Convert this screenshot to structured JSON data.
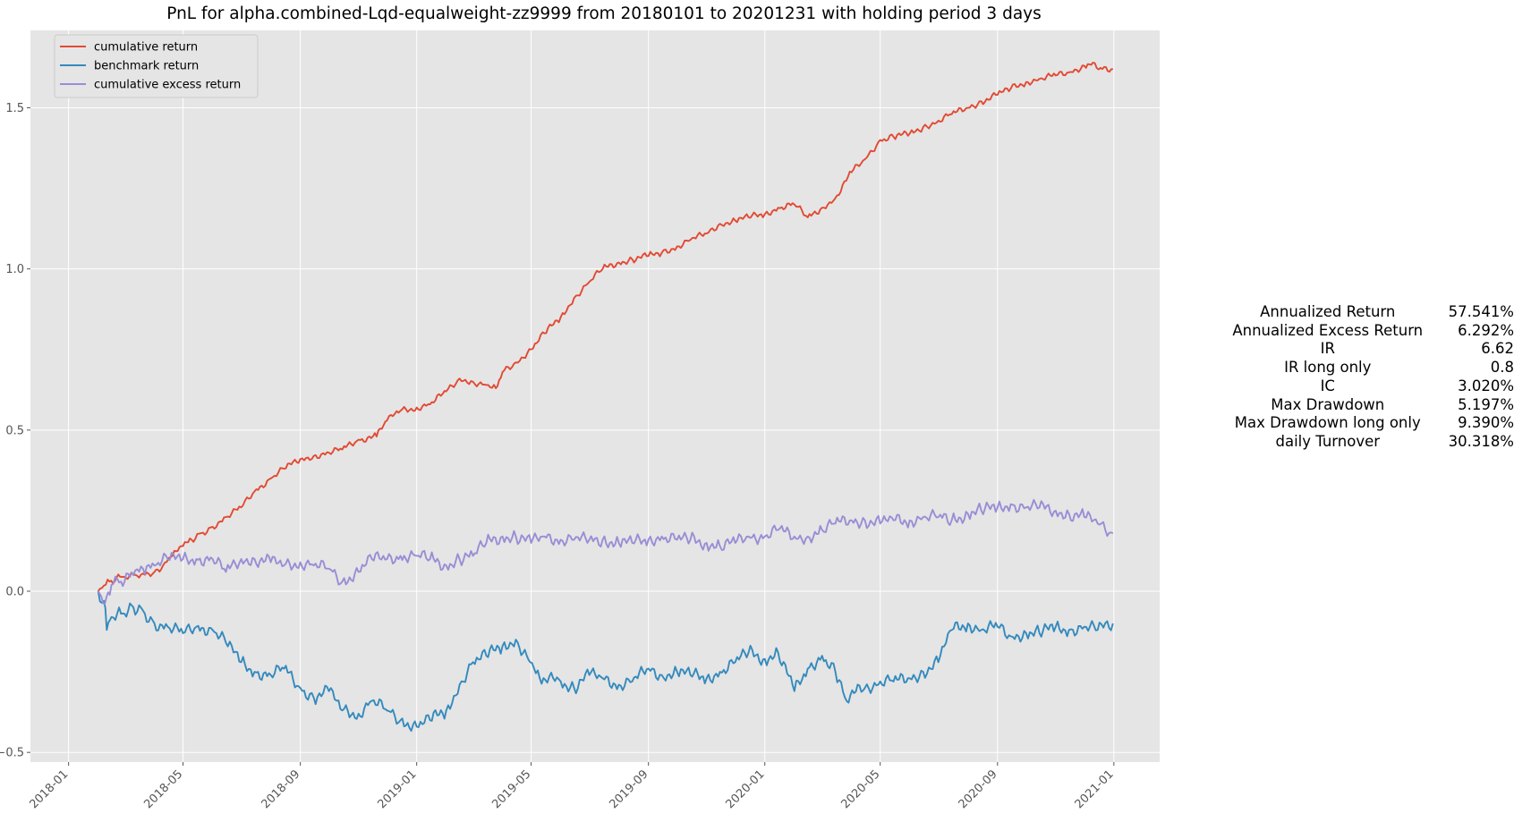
{
  "chart_data": {
    "type": "line",
    "title": "PnL for alpha.combined-Lqd-equalweight-zz9999 from 20180101 to 20201231 with holding period 3 days",
    "xlabel": "",
    "ylabel": "",
    "x_ticks": [
      "2018-01",
      "2018-05",
      "2018-09",
      "2019-01",
      "2019-05",
      "2019-09",
      "2020-01",
      "2020-05",
      "2020-09",
      "2021-01"
    ],
    "y_ticks": [
      "−0.5",
      "0.0",
      "0.5",
      "1.0",
      "1.5"
    ],
    "ylim": [
      -0.53,
      1.74
    ],
    "xlim": [
      "2017-11-22",
      "2021-02-18"
    ],
    "grid": true,
    "legend_position": "top-left",
    "series": [
      {
        "name": "cumulative return",
        "color": "#e24a33",
        "points": [
          [
            "2018-02-01",
            0.0
          ],
          [
            "2018-02-05",
            0.01
          ],
          [
            "2018-02-09",
            0.02
          ],
          [
            "2018-02-13",
            0.03
          ],
          [
            "2018-02-20",
            0.04
          ],
          [
            "2018-02-28",
            0.045
          ],
          [
            "2018-03-10",
            0.05
          ],
          [
            "2018-03-20",
            0.055
          ],
          [
            "2018-04-01",
            0.06
          ],
          [
            "2018-04-10",
            0.08
          ],
          [
            "2018-04-20",
            0.11
          ],
          [
            "2018-05-01",
            0.14
          ],
          [
            "2018-05-10",
            0.16
          ],
          [
            "2018-05-20",
            0.18
          ],
          [
            "2018-06-01",
            0.2
          ],
          [
            "2018-06-15",
            0.23
          ],
          [
            "2018-07-01",
            0.26
          ],
          [
            "2018-07-15",
            0.31
          ],
          [
            "2018-08-01",
            0.35
          ],
          [
            "2018-08-15",
            0.38
          ],
          [
            "2018-09-01",
            0.41
          ],
          [
            "2018-09-15",
            0.42
          ],
          [
            "2018-10-01",
            0.43
          ],
          [
            "2018-10-15",
            0.44
          ],
          [
            "2018-11-01",
            0.47
          ],
          [
            "2018-11-20",
            0.48
          ],
          [
            "2018-12-01",
            0.53
          ],
          [
            "2018-12-15",
            0.56
          ],
          [
            "2019-01-01",
            0.57
          ],
          [
            "2019-01-15",
            0.58
          ],
          [
            "2019-02-01",
            0.62
          ],
          [
            "2019-02-15",
            0.66
          ],
          [
            "2019-03-01",
            0.65
          ],
          [
            "2019-03-15",
            0.64
          ],
          [
            "2019-03-25",
            0.63
          ],
          [
            "2019-04-01",
            0.68
          ],
          [
            "2019-04-15",
            0.71
          ],
          [
            "2019-05-01",
            0.75
          ],
          [
            "2019-05-15",
            0.8
          ],
          [
            "2019-06-01",
            0.85
          ],
          [
            "2019-06-15",
            0.91
          ],
          [
            "2019-07-01",
            0.96
          ],
          [
            "2019-07-15",
            1.0
          ],
          [
            "2019-08-01",
            1.02
          ],
          [
            "2019-08-15",
            1.03
          ],
          [
            "2019-09-01",
            1.04
          ],
          [
            "2019-09-15",
            1.05
          ],
          [
            "2019-10-01",
            1.07
          ],
          [
            "2019-10-15",
            1.09
          ],
          [
            "2019-11-01",
            1.11
          ],
          [
            "2019-11-15",
            1.14
          ],
          [
            "2019-12-01",
            1.15
          ],
          [
            "2019-12-15",
            1.16
          ],
          [
            "2020-01-01",
            1.17
          ],
          [
            "2020-01-15",
            1.19
          ],
          [
            "2020-02-01",
            1.2
          ],
          [
            "2020-02-15",
            1.16
          ],
          [
            "2020-03-01",
            1.19
          ],
          [
            "2020-03-15",
            1.22
          ],
          [
            "2020-04-01",
            1.3
          ],
          [
            "2020-04-15",
            1.34
          ],
          [
            "2020-05-01",
            1.4
          ],
          [
            "2020-05-15",
            1.41
          ],
          [
            "2020-06-01",
            1.42
          ],
          [
            "2020-06-15",
            1.44
          ],
          [
            "2020-07-01",
            1.46
          ],
          [
            "2020-07-15",
            1.48
          ],
          [
            "2020-08-01",
            1.5
          ],
          [
            "2020-08-15",
            1.52
          ],
          [
            "2020-09-01",
            1.54
          ],
          [
            "2020-09-15",
            1.56
          ],
          [
            "2020-10-01",
            1.58
          ],
          [
            "2020-10-15",
            1.59
          ],
          [
            "2020-11-01",
            1.6
          ],
          [
            "2020-11-15",
            1.61
          ],
          [
            "2020-12-01",
            1.63
          ],
          [
            "2020-12-10",
            1.64
          ],
          [
            "2020-12-20",
            1.62
          ],
          [
            "2020-12-31",
            1.62
          ]
        ]
      },
      {
        "name": "benchmark return",
        "color": "#348abd",
        "points": [
          [
            "2018-02-01",
            0.0
          ],
          [
            "2018-02-07",
            -0.03
          ],
          [
            "2018-02-10",
            -0.12
          ],
          [
            "2018-02-15",
            -0.08
          ],
          [
            "2018-02-25",
            -0.07
          ],
          [
            "2018-03-10",
            -0.05
          ],
          [
            "2018-03-20",
            -0.06
          ],
          [
            "2018-04-01",
            -0.1
          ],
          [
            "2018-04-15",
            -0.11
          ],
          [
            "2018-05-01",
            -0.13
          ],
          [
            "2018-05-15",
            -0.11
          ],
          [
            "2018-06-01",
            -0.12
          ],
          [
            "2018-06-15",
            -0.16
          ],
          [
            "2018-07-01",
            -0.22
          ],
          [
            "2018-07-15",
            -0.25
          ],
          [
            "2018-08-01",
            -0.26
          ],
          [
            "2018-08-15",
            -0.24
          ],
          [
            "2018-09-01",
            -0.3
          ],
          [
            "2018-09-15",
            -0.33
          ],
          [
            "2018-10-01",
            -0.31
          ],
          [
            "2018-10-15",
            -0.37
          ],
          [
            "2018-11-01",
            -0.38
          ],
          [
            "2018-11-15",
            -0.34
          ],
          [
            "2018-12-01",
            -0.37
          ],
          [
            "2018-12-15",
            -0.4
          ],
          [
            "2019-01-01",
            -0.42
          ],
          [
            "2019-01-15",
            -0.4
          ],
          [
            "2019-02-01",
            -0.37
          ],
          [
            "2019-02-15",
            -0.29
          ],
          [
            "2019-03-01",
            -0.22
          ],
          [
            "2019-03-15",
            -0.2
          ],
          [
            "2019-04-01",
            -0.17
          ],
          [
            "2019-04-15",
            -0.15
          ],
          [
            "2019-04-30",
            -0.22
          ],
          [
            "2019-05-10",
            -0.27
          ],
          [
            "2019-06-01",
            -0.28
          ],
          [
            "2019-06-15",
            -0.3
          ],
          [
            "2019-07-01",
            -0.26
          ],
          [
            "2019-07-15",
            -0.27
          ],
          [
            "2019-08-01",
            -0.29
          ],
          [
            "2019-08-15",
            -0.28
          ],
          [
            "2019-09-01",
            -0.24
          ],
          [
            "2019-09-15",
            -0.26
          ],
          [
            "2019-10-01",
            -0.25
          ],
          [
            "2019-10-15",
            -0.26
          ],
          [
            "2019-11-01",
            -0.27
          ],
          [
            "2019-11-15",
            -0.25
          ],
          [
            "2019-12-01",
            -0.22
          ],
          [
            "2019-12-15",
            -0.19
          ],
          [
            "2020-01-01",
            -0.21
          ],
          [
            "2020-01-15",
            -0.19
          ],
          [
            "2020-02-01",
            -0.31
          ],
          [
            "2020-02-15",
            -0.24
          ],
          [
            "2020-03-01",
            -0.2
          ],
          [
            "2020-03-15",
            -0.25
          ],
          [
            "2020-03-25",
            -0.33
          ],
          [
            "2020-04-15",
            -0.3
          ],
          [
            "2020-05-01",
            -0.28
          ],
          [
            "2020-05-15",
            -0.28
          ],
          [
            "2020-06-01",
            -0.27
          ],
          [
            "2020-06-15",
            -0.25
          ],
          [
            "2020-07-01",
            -0.22
          ],
          [
            "2020-07-15",
            -0.12
          ],
          [
            "2020-08-01",
            -0.1
          ],
          [
            "2020-08-15",
            -0.12
          ],
          [
            "2020-09-01",
            -0.11
          ],
          [
            "2020-09-15",
            -0.14
          ],
          [
            "2020-10-01",
            -0.13
          ],
          [
            "2020-10-15",
            -0.13
          ],
          [
            "2020-11-01",
            -0.11
          ],
          [
            "2020-11-15",
            -0.12
          ],
          [
            "2020-12-01",
            -0.11
          ],
          [
            "2020-12-15",
            -0.12
          ],
          [
            "2020-12-31",
            -0.1
          ]
        ]
      },
      {
        "name": "cumulative excess return",
        "color": "#988ed5",
        "points": [
          [
            "2018-02-01",
            0.0
          ],
          [
            "2018-02-08",
            -0.04
          ],
          [
            "2018-02-15",
            0.02
          ],
          [
            "2018-02-25",
            0.03
          ],
          [
            "2018-03-10",
            0.05
          ],
          [
            "2018-03-20",
            0.07
          ],
          [
            "2018-04-01",
            0.08
          ],
          [
            "2018-04-15",
            0.1
          ],
          [
            "2018-05-01",
            0.1
          ],
          [
            "2018-05-15",
            0.1
          ],
          [
            "2018-06-01",
            0.1
          ],
          [
            "2018-06-15",
            0.06
          ],
          [
            "2018-07-01",
            0.1
          ],
          [
            "2018-07-15",
            0.1
          ],
          [
            "2018-08-01",
            0.09
          ],
          [
            "2018-08-15",
            0.08
          ],
          [
            "2018-09-01",
            0.09
          ],
          [
            "2018-09-15",
            0.08
          ],
          [
            "2018-10-01",
            0.07
          ],
          [
            "2018-10-15",
            0.03
          ],
          [
            "2018-11-01",
            0.06
          ],
          [
            "2018-11-15",
            0.1
          ],
          [
            "2018-12-01",
            0.1
          ],
          [
            "2018-12-15",
            0.11
          ],
          [
            "2019-01-01",
            0.11
          ],
          [
            "2019-01-15",
            0.1
          ],
          [
            "2019-02-01",
            0.08
          ],
          [
            "2019-02-15",
            0.1
          ],
          [
            "2019-03-01",
            0.11
          ],
          [
            "2019-03-15",
            0.15
          ],
          [
            "2019-04-01",
            0.17
          ],
          [
            "2019-04-15",
            0.17
          ],
          [
            "2019-05-01",
            0.15
          ],
          [
            "2019-05-15",
            0.17
          ],
          [
            "2019-06-01",
            0.16
          ],
          [
            "2019-06-15",
            0.16
          ],
          [
            "2019-07-01",
            0.16
          ],
          [
            "2019-07-15",
            0.16
          ],
          [
            "2019-08-01",
            0.15
          ],
          [
            "2019-08-15",
            0.15
          ],
          [
            "2019-09-01",
            0.16
          ],
          [
            "2019-09-15",
            0.17
          ],
          [
            "2019-10-01",
            0.16
          ],
          [
            "2019-10-15",
            0.16
          ],
          [
            "2019-11-01",
            0.15
          ],
          [
            "2019-11-15",
            0.14
          ],
          [
            "2019-12-01",
            0.15
          ],
          [
            "2019-12-15",
            0.17
          ],
          [
            "2020-01-01",
            0.17
          ],
          [
            "2020-01-15",
            0.19
          ],
          [
            "2020-02-01",
            0.17
          ],
          [
            "2020-02-15",
            0.17
          ],
          [
            "2020-03-01",
            0.19
          ],
          [
            "2020-03-15",
            0.21
          ],
          [
            "2020-04-01",
            0.22
          ],
          [
            "2020-04-15",
            0.22
          ],
          [
            "2020-05-01",
            0.21
          ],
          [
            "2020-05-15",
            0.22
          ],
          [
            "2020-06-01",
            0.22
          ],
          [
            "2020-06-15",
            0.23
          ],
          [
            "2020-07-01",
            0.23
          ],
          [
            "2020-07-15",
            0.22
          ],
          [
            "2020-08-01",
            0.24
          ],
          [
            "2020-08-15",
            0.25
          ],
          [
            "2020-09-01",
            0.26
          ],
          [
            "2020-09-15",
            0.27
          ],
          [
            "2020-10-01",
            0.26
          ],
          [
            "2020-10-15",
            0.26
          ],
          [
            "2020-11-01",
            0.25
          ],
          [
            "2020-11-15",
            0.24
          ],
          [
            "2020-12-01",
            0.23
          ],
          [
            "2020-12-15",
            0.21
          ],
          [
            "2020-12-31",
            0.18
          ]
        ]
      }
    ]
  },
  "stats": [
    {
      "label": "Annualized Return",
      "value": "57.541%"
    },
    {
      "label": "Annualized Excess Return",
      "value": "6.292%"
    },
    {
      "label": "IR",
      "value": "6.62"
    },
    {
      "label": "IR long only",
      "value": "0.8"
    },
    {
      "label": "IC",
      "value": "3.020%"
    },
    {
      "label": "Max Drawdown",
      "value": "5.197%"
    },
    {
      "label": "Max Drawdown long only",
      "value": "9.390%"
    },
    {
      "label": "daily Turnover",
      "value": "30.318%"
    }
  ]
}
